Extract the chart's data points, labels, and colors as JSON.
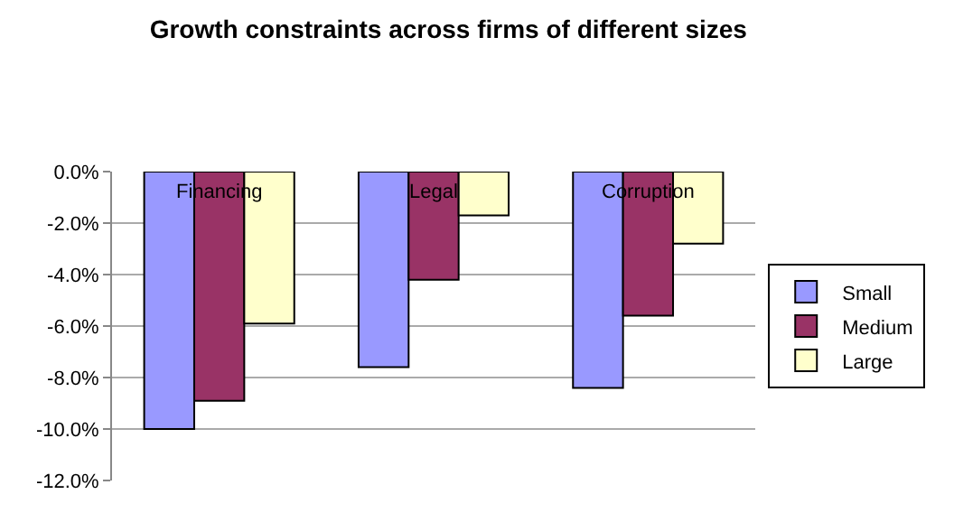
{
  "chart_data": {
    "type": "bar",
    "title": "Growth constraints across firms of different sizes",
    "categories": [
      "Financing",
      "Legal",
      "Corruption"
    ],
    "series": [
      {
        "name": "Small",
        "color": "#9999ff",
        "values": [
          -10.0,
          -7.6,
          -8.4
        ]
      },
      {
        "name": "Medium",
        "color": "#993366",
        "values": [
          -8.9,
          -4.2,
          -5.6
        ]
      },
      {
        "name": "Large",
        "color": "#ffffcc",
        "values": [
          -5.9,
          -1.7,
          -2.8
        ]
      }
    ],
    "ylim": [
      -12,
      0
    ],
    "yticks": [
      {
        "value": 0,
        "label": "0.0%"
      },
      {
        "value": -2,
        "label": "-2.0%"
      },
      {
        "value": -4,
        "label": "-4.0%"
      },
      {
        "value": -6,
        "label": "-6.0%"
      },
      {
        "value": -8,
        "label": "-8.0%"
      },
      {
        "value": -10,
        "label": "-10.0%"
      },
      {
        "value": -12,
        "label": "-12.0%"
      }
    ],
    "grid": "y",
    "legend": "right"
  }
}
